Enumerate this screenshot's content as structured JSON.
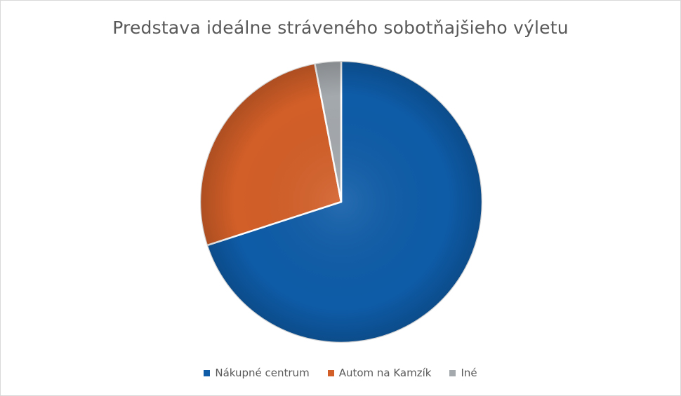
{
  "chart_data": {
    "type": "pie",
    "title": "Predstava ideálne stráveného sobotňajšieho výletu",
    "categories": [
      "Nákupné centrum",
      "Autom na Kamzík",
      "Iné"
    ],
    "values": [
      70.0,
      27.0,
      3.0
    ],
    "colors": [
      "#0e5ca8",
      "#d35f28",
      "#a4a9ad"
    ],
    "legend_position": "bottom",
    "start_angle_deg": 0,
    "direction": "clockwise"
  }
}
